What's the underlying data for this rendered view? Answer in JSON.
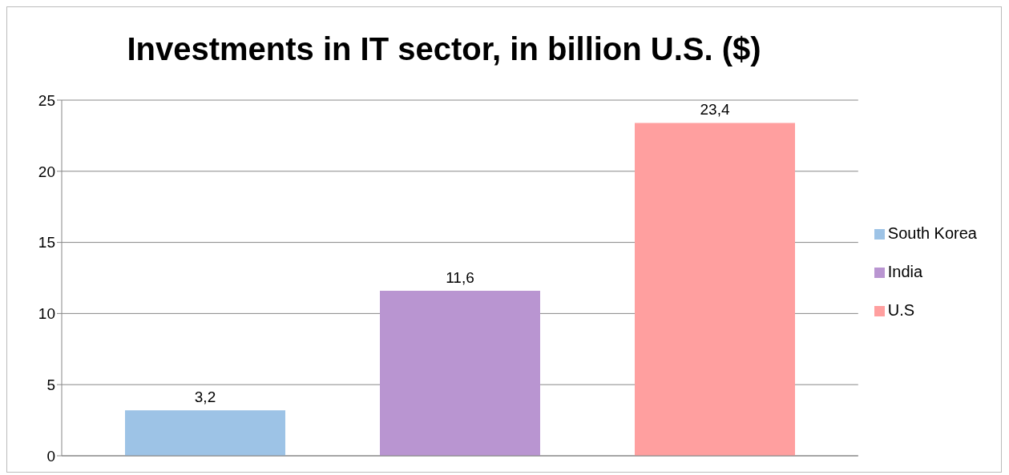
{
  "chart_data": {
    "type": "bar",
    "title": "Investments in IT sector, in billion U.S. ($)",
    "categories": [
      null
    ],
    "series": [
      {
        "name": "South Korea",
        "color": "#9dc3e6",
        "values": [
          3.2
        ],
        "value_labels": [
          "3,2"
        ]
      },
      {
        "name": "India",
        "color": "#b995d1",
        "values": [
          11.6
        ],
        "value_labels": [
          "11,6"
        ]
      },
      {
        "name": "U.S",
        "color": "#ff9f9f",
        "values": [
          23.4
        ],
        "value_labels": [
          "23,4"
        ]
      }
    ],
    "ylim": [
      0,
      25
    ],
    "yticks": [
      0,
      5,
      10,
      15,
      20,
      25
    ],
    "grid": "y",
    "legend": "right"
  }
}
